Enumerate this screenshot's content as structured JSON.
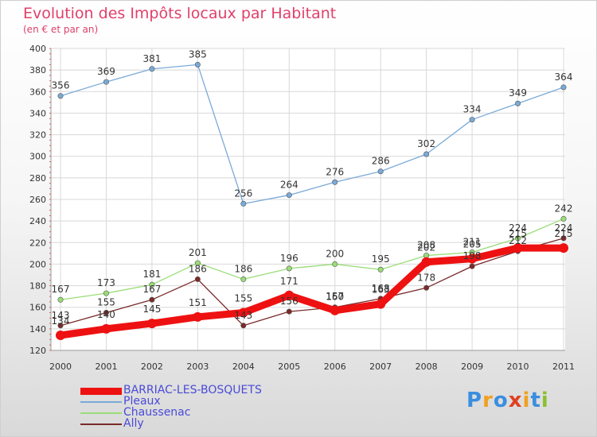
{
  "header": {
    "title": "Evolution des Impôts locaux par Habitant",
    "subtitle": "(en € et par an)"
  },
  "logo": {
    "text": "Proxiti",
    "letters": [
      {
        "ch": "P",
        "color": "#3a8ee0"
      },
      {
        "ch": "r",
        "color": "#f0a020"
      },
      {
        "ch": "o",
        "color": "#3a8ee0"
      },
      {
        "ch": "x",
        "color": "#e04020"
      },
      {
        "ch": "i",
        "color": "#f0a020"
      },
      {
        "ch": "t",
        "color": "#3a8ee0"
      },
      {
        "ch": "i",
        "color": "#8ac030"
      }
    ]
  },
  "chart_data": {
    "type": "line",
    "x": [
      2000,
      2001,
      2002,
      2003,
      2004,
      2005,
      2006,
      2007,
      2008,
      2009,
      2010,
      2011
    ],
    "ylim": [
      120,
      400
    ],
    "y_ticks": [
      120,
      140,
      160,
      180,
      200,
      220,
      240,
      260,
      280,
      300,
      320,
      340,
      360,
      380,
      400
    ],
    "grid": true,
    "legend_position": "bottom-left",
    "series": [
      {
        "name": "BARRIAC-LES-BOSQUETS",
        "color": "#ee1111",
        "values": [
          134,
          140,
          145,
          151,
          155,
          171,
          157,
          163,
          202,
          205,
          215,
          215
        ]
      },
      {
        "name": "Pleaux",
        "color": "#7aaad8",
        "values": [
          356,
          369,
          381,
          385,
          256,
          264,
          276,
          286,
          302,
          334,
          349,
          364
        ]
      },
      {
        "name": "Chaussenac",
        "color": "#99dd77",
        "values": [
          167,
          173,
          181,
          201,
          186,
          196,
          200,
          195,
          208,
          211,
          224,
          242
        ]
      },
      {
        "name": "Ally",
        "color": "#7a2a2a",
        "values": [
          143,
          155,
          167,
          186,
          143,
          156,
          160,
          168,
          178,
          198,
          212,
          224
        ]
      }
    ],
    "data_labels": {
      "BARRIAC-LES-BOSQUETS": [
        "134",
        "140",
        "145",
        "151",
        "155",
        "171",
        "157",
        "163",
        "202",
        "205",
        "215",
        "215"
      ],
      "Pleaux": [
        "356",
        "369",
        "381",
        "385",
        "256",
        "264",
        "276",
        "286",
        "302",
        "334",
        "349",
        "364"
      ],
      "Chaussenac": [
        "167",
        "173",
        "181",
        "201",
        "186",
        "196",
        "200",
        "195",
        "208",
        "211",
        "224",
        "242"
      ],
      "Ally": [
        "143",
        "155",
        "167",
        "186",
        "143",
        "156",
        "160",
        "168",
        "178",
        "198",
        "212",
        "224"
      ]
    }
  }
}
